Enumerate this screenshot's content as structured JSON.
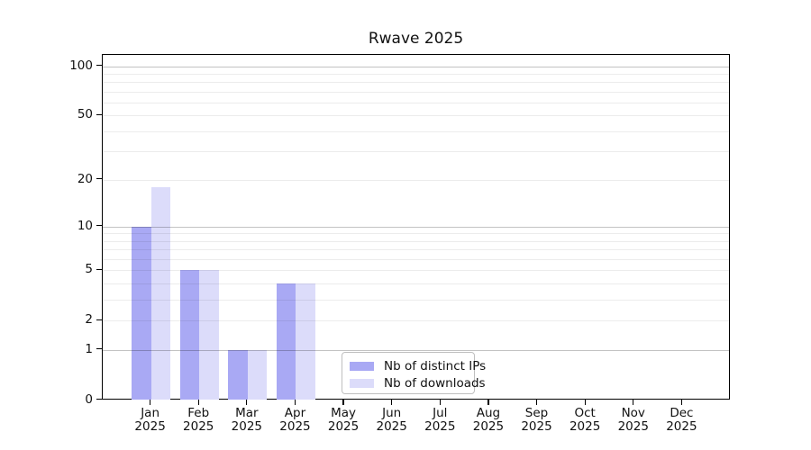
{
  "window": {
    "background": "#ffffff"
  },
  "chart_data": {
    "type": "bar",
    "title": "Rwave 2025",
    "x_tick_labels": [
      {
        "month": "Jan",
        "year": "2025"
      },
      {
        "month": "Feb",
        "year": "2025"
      },
      {
        "month": "Mar",
        "year": "2025"
      },
      {
        "month": "Apr",
        "year": "2025"
      },
      {
        "month": "May",
        "year": "2025"
      },
      {
        "month": "Jun",
        "year": "2025"
      },
      {
        "month": "Jul",
        "year": "2025"
      },
      {
        "month": "Aug",
        "year": "2025"
      },
      {
        "month": "Sep",
        "year": "2025"
      },
      {
        "month": "Oct",
        "year": "2025"
      },
      {
        "month": "Nov",
        "year": "2025"
      },
      {
        "month": "Dec",
        "year": "2025"
      }
    ],
    "series": [
      {
        "name": "Nb of distinct IPs",
        "color": "#a9a9f4",
        "values": [
          10,
          5,
          1,
          4,
          0,
          0,
          0,
          0,
          0,
          0,
          0,
          0
        ]
      },
      {
        "name": "Nb of downloads",
        "color": "#dcdcfa",
        "values": [
          18,
          5,
          1,
          4,
          0,
          0,
          0,
          0,
          0,
          0,
          0,
          0
        ]
      }
    ],
    "y_axis": {
      "scale": "log1p",
      "min": 0,
      "max": 117,
      "label_ticks": [
        0,
        1,
        2,
        5,
        10,
        20,
        50,
        100
      ],
      "major_gridlines": [
        1,
        10,
        100
      ],
      "minor_gridlines": [
        2,
        3,
        4,
        5,
        6,
        7,
        8,
        9,
        20,
        30,
        40,
        50,
        60,
        70,
        80,
        90
      ]
    },
    "x_axis": {
      "lim": [
        -1,
        12
      ]
    },
    "legend": {
      "position": "lower-center"
    },
    "grid": "horizontal-only",
    "colors": {
      "axis": "#000000",
      "major_grid": "#c4c4c4",
      "minor_grid": "#ececec"
    }
  }
}
